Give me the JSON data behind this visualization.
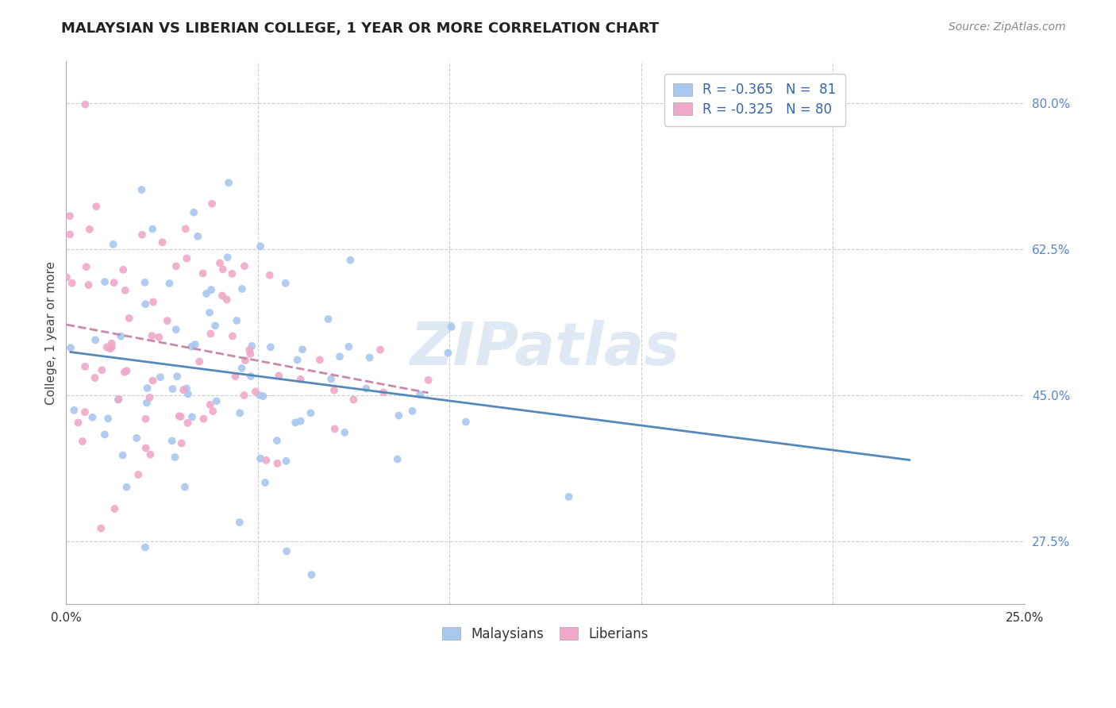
{
  "title": "MALAYSIAN VS LIBERIAN COLLEGE, 1 YEAR OR MORE CORRELATION CHART",
  "source": "Source: ZipAtlas.com",
  "ylabel": "College, 1 year or more",
  "xlim": [
    0.0,
    0.25
  ],
  "ylim": [
    0.2,
    0.85
  ],
  "x_ticks": [
    0.0,
    0.05,
    0.1,
    0.15,
    0.2,
    0.25
  ],
  "x_tick_labels": [
    "0.0%",
    "",
    "",
    "",
    "",
    "25.0%"
  ],
  "y_ticks": [
    0.275,
    0.45,
    0.625,
    0.8
  ],
  "y_tick_labels": [
    "27.5%",
    "45.0%",
    "62.5%",
    "80.0%"
  ],
  "legend_label1": "R = -0.365   N =  81",
  "legend_label2": "R = -0.325   N = 80",
  "R1": -0.365,
  "N1": 81,
  "R2": -0.325,
  "N2": 80,
  "color_blue": "#a8c8f0",
  "color_pink": "#f0a8c8",
  "line_blue": "#5588bb",
  "line_pink": "#cc88aa",
  "grid_color": "#cccccc",
  "background": "#ffffff",
  "watermark": "ZIPatlas",
  "scatter_alpha": 0.9,
  "scatter_size": 50,
  "legend1_label": "Malaysians",
  "legend2_label": "Liberians"
}
